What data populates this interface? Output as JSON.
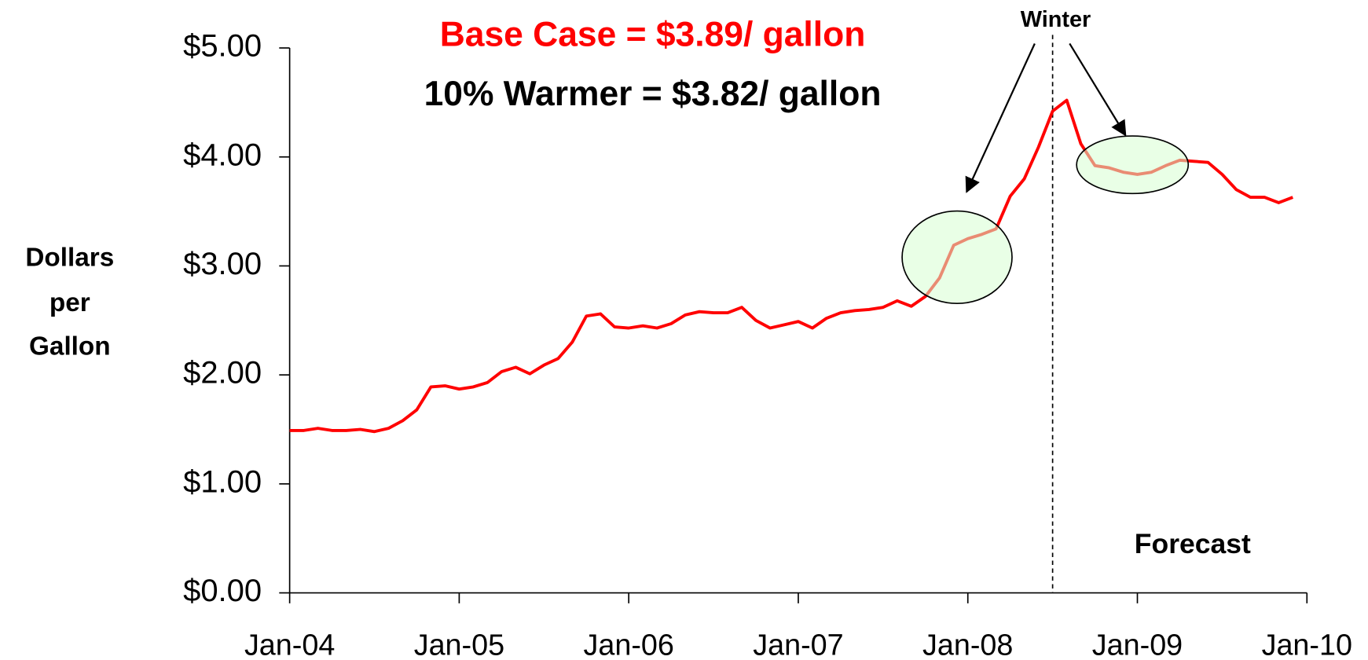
{
  "chart_data": {
    "type": "line",
    "title": "Base Case = $3.89/ gallon",
    "subtitle": "10% Warmer = $3.82/ gallon",
    "y_label": [
      "Dollars",
      "per",
      "Gallon"
    ],
    "annotations": {
      "winter": "Winter",
      "forecast": "Forecast",
      "forecast_start": "2008-07"
    },
    "x": [
      "2004-01",
      "2004-02",
      "2004-03",
      "2004-04",
      "2004-05",
      "2004-06",
      "2004-07",
      "2004-08",
      "2004-09",
      "2004-10",
      "2004-11",
      "2004-12",
      "2005-01",
      "2005-02",
      "2005-03",
      "2005-04",
      "2005-05",
      "2005-06",
      "2005-07",
      "2005-08",
      "2005-09",
      "2005-10",
      "2005-11",
      "2005-12",
      "2006-01",
      "2006-02",
      "2006-03",
      "2006-04",
      "2006-05",
      "2006-06",
      "2006-07",
      "2006-08",
      "2006-09",
      "2006-10",
      "2006-11",
      "2006-12",
      "2007-01",
      "2007-02",
      "2007-03",
      "2007-04",
      "2007-05",
      "2007-06",
      "2007-07",
      "2007-08",
      "2007-09",
      "2007-10",
      "2007-11",
      "2007-12",
      "2008-01",
      "2008-02",
      "2008-03",
      "2008-04",
      "2008-05",
      "2008-06",
      "2008-07",
      "2008-08",
      "2008-09",
      "2008-10",
      "2008-11",
      "2008-12",
      "2009-01",
      "2009-02",
      "2009-03",
      "2009-04",
      "2009-05",
      "2009-06",
      "2009-07",
      "2009-08",
      "2009-09",
      "2009-10",
      "2009-11",
      "2009-12"
    ],
    "series": [
      {
        "name": "Base Case",
        "color": "#ff0000",
        "values": [
          1.49,
          1.49,
          1.51,
          1.49,
          1.49,
          1.5,
          1.48,
          1.51,
          1.58,
          1.68,
          1.89,
          1.9,
          1.87,
          1.89,
          1.93,
          2.03,
          2.07,
          2.01,
          2.09,
          2.15,
          2.3,
          2.54,
          2.56,
          2.44,
          2.43,
          2.45,
          2.43,
          2.47,
          2.55,
          2.58,
          2.57,
          2.57,
          2.62,
          2.5,
          2.43,
          2.46,
          2.49,
          2.43,
          2.52,
          2.57,
          2.59,
          2.6,
          2.62,
          2.68,
          2.63,
          2.72,
          2.89,
          3.19,
          3.25,
          3.29,
          3.34,
          3.64,
          3.8,
          4.09,
          4.42,
          4.52,
          4.12,
          3.92,
          3.9,
          3.86,
          3.84,
          3.86,
          3.92,
          3.97,
          3.96,
          3.95,
          3.84,
          3.7,
          3.63,
          3.63,
          3.58,
          3.63
        ]
      }
    ],
    "xlim": [
      "2004-01",
      "2010-01"
    ],
    "xticks": [
      {
        "value": "2004-01",
        "label": "Jan-04"
      },
      {
        "value": "2005-01",
        "label": "Jan-05"
      },
      {
        "value": "2006-01",
        "label": "Jan-06"
      },
      {
        "value": "2007-01",
        "label": "Jan-07"
      },
      {
        "value": "2008-01",
        "label": "Jan-08"
      },
      {
        "value": "2009-01",
        "label": "Jan-09"
      },
      {
        "value": "2010-01",
        "label": "Jan-10"
      }
    ],
    "ylim": [
      0,
      5
    ],
    "yticks": [
      {
        "value": 0,
        "label": "$0.00"
      },
      {
        "value": 1,
        "label": "$1.00"
      },
      {
        "value": 2,
        "label": "$2.00"
      },
      {
        "value": 3,
        "label": "$3.00"
      },
      {
        "value": 4,
        "label": "$4.00"
      },
      {
        "value": 5,
        "label": "$5.00"
      }
    ],
    "grid": false
  }
}
